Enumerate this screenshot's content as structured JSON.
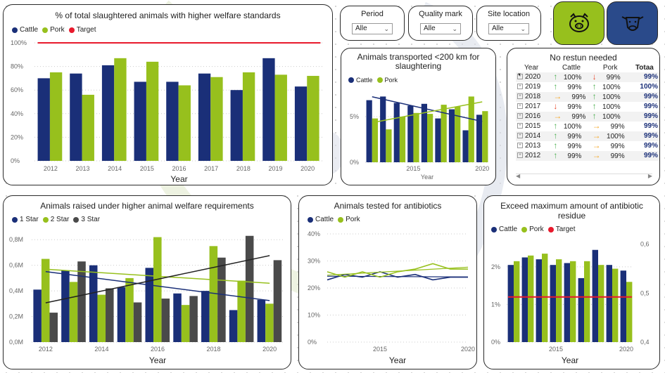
{
  "colors": {
    "cattle": "#1a2f78",
    "pork": "#97c01d",
    "target": "#e8192c",
    "star3": "#4a4a4a",
    "pig_btn": "#97c01d",
    "cow_btn": "#2a4a8a",
    "arrow_up": "#4caf50",
    "arrow_down": "#e8492c",
    "arrow_right": "#f5a623"
  },
  "slicers": [
    {
      "label": "Period",
      "value": "Alle"
    },
    {
      "label": "Quality mark",
      "value": "Alle"
    },
    {
      "label": "Site location",
      "value": "Alle"
    }
  ],
  "buttons": {
    "pig": "pig-icon",
    "cow": "cow-icon"
  },
  "watermark": "vion",
  "welfare": {
    "title": "% of total slaughtered animals with higher welfare standards",
    "legend": [
      "Cattle",
      "Pork",
      "Target"
    ],
    "xlabel": "Year",
    "yticks": [
      "100%",
      "80%",
      "60%",
      "40%",
      "20%",
      "0%"
    ]
  },
  "transport": {
    "title": "Animals transported <200 km for slaughtering",
    "legend": [
      "Cattle",
      "Pork"
    ],
    "xlabel": "Year",
    "yticks": [
      "5%",
      "0%"
    ],
    "xticks": [
      "2015",
      "2020"
    ]
  },
  "matrix": {
    "title": "No restun needed",
    "headers": [
      "Year",
      "Cattle",
      "Pork",
      "Totaa"
    ],
    "rows": [
      {
        "year": "2020",
        "cattle": "100%",
        "ca": "up",
        "pork": "99%",
        "pa": "down",
        "total": "99%"
      },
      {
        "year": "2019",
        "cattle": "99%",
        "ca": "up",
        "pork": "100%",
        "pa": "up",
        "total": "100%"
      },
      {
        "year": "2018",
        "cattle": "99%",
        "ca": "right",
        "pork": "100%",
        "pa": "up",
        "total": "99%"
      },
      {
        "year": "2017",
        "cattle": "99%",
        "ca": "down",
        "pork": "100%",
        "pa": "up",
        "total": "99%"
      },
      {
        "year": "2016",
        "cattle": "99%",
        "ca": "right",
        "pork": "100%",
        "pa": "up",
        "total": "99%"
      },
      {
        "year": "2015",
        "cattle": "100%",
        "ca": "up",
        "pork": "99%",
        "pa": "right",
        "total": "99%"
      },
      {
        "year": "2014",
        "cattle": "99%",
        "ca": "up",
        "pork": "100%",
        "pa": "right",
        "total": "99%"
      },
      {
        "year": "2013",
        "cattle": "99%",
        "ca": "up",
        "pork": "99%",
        "pa": "right",
        "total": "99%"
      },
      {
        "year": "2012",
        "cattle": "99%",
        "ca": "up",
        "pork": "99%",
        "pa": "right",
        "total": "99%"
      }
    ]
  },
  "raised": {
    "title": "Animals raised under higher animal welfare requirements",
    "legend": [
      "1 Star",
      "2 Star",
      "3 Star"
    ],
    "xlabel": "Year",
    "yticks": [
      "0,8M",
      "0,6M",
      "0,4M",
      "0,2M",
      "0,0M"
    ]
  },
  "antibiotics": {
    "title": "Animals tested for antibiotics",
    "legend": [
      "Cattle",
      "Pork"
    ],
    "xlabel": "Year",
    "yticks": [
      "40%",
      "30%",
      "20%",
      "10%",
      "0%"
    ],
    "xticks": [
      "2015",
      "2020"
    ]
  },
  "residue": {
    "title": "Exceed maximum amount of antibiotic residue",
    "legend": [
      "Cattle",
      "Pork",
      "Target"
    ],
    "xlabel": "Year",
    "yticks": [
      "2%",
      "1%",
      "0%"
    ],
    "y2ticks": [
      "0,6",
      "0,5",
      "0,4"
    ],
    "xticks": [
      "2015",
      "2020"
    ]
  },
  "chart_data": [
    {
      "type": "bar",
      "title": "% of total slaughtered animals with higher welfare standards",
      "categories": [
        "2012",
        "2013",
        "2014",
        "2015",
        "2016",
        "2017",
        "2018",
        "2019",
        "2020"
      ],
      "series": [
        {
          "name": "Cattle",
          "values": [
            70,
            74,
            81,
            67,
            67,
            74,
            60,
            87,
            63
          ]
        },
        {
          "name": "Pork",
          "values": [
            75,
            56,
            87,
            84,
            64,
            71,
            75,
            73,
            72
          ]
        },
        {
          "name": "Target",
          "values": [
            100,
            100,
            100,
            100,
            100,
            100,
            100,
            100,
            100
          ]
        }
      ],
      "xlabel": "Year",
      "ylabel": "",
      "ylim": [
        0,
        100
      ]
    },
    {
      "type": "bar",
      "title": "Animals transported <200 km for slaughtering",
      "categories": [
        "2012",
        "2013",
        "2014",
        "2015",
        "2016",
        "2017",
        "2018",
        "2019",
        "2020"
      ],
      "series": [
        {
          "name": "Cattle",
          "values": [
            6.8,
            7.2,
            6.5,
            6.2,
            6.4,
            4.8,
            5.8,
            3.5,
            5.2
          ]
        },
        {
          "name": "Pork",
          "values": [
            4.8,
            3.6,
            5.0,
            5.4,
            5.3,
            6.3,
            6.1,
            7.2,
            5.6
          ]
        }
      ],
      "xlabel": "Year",
      "ylim": [
        0,
        8
      ]
    },
    {
      "type": "bar",
      "title": "Animals raised under higher animal welfare requirements",
      "categories": [
        "2012",
        "2013",
        "2014",
        "2015",
        "2016",
        "2017",
        "2018",
        "2019",
        "2020"
      ],
      "series": [
        {
          "name": "1 Star",
          "values": [
            0.41,
            0.56,
            0.6,
            0.43,
            0.58,
            0.38,
            0.4,
            0.25,
            0.33
          ]
        },
        {
          "name": "2 Star",
          "values": [
            0.65,
            0.47,
            0.37,
            0.5,
            0.82,
            0.29,
            0.75,
            0.48,
            0.3
          ]
        },
        {
          "name": "3 Star",
          "values": [
            0.23,
            0.63,
            0.42,
            0.31,
            0.34,
            0.36,
            0.66,
            0.83,
            0.64
          ]
        }
      ],
      "xlabel": "Year",
      "ylim": [
        0,
        0.9
      ]
    },
    {
      "type": "line",
      "title": "Animals tested for antibiotics",
      "x": [
        2012,
        2013,
        2014,
        2015,
        2016,
        2017,
        2018,
        2019,
        2020
      ],
      "series": [
        {
          "name": "Cattle",
          "values": [
            23,
            25,
            24,
            26,
            24,
            25,
            23,
            24,
            24
          ]
        },
        {
          "name": "Pork",
          "values": [
            26,
            24,
            26,
            24,
            26,
            27,
            29,
            27,
            27
          ]
        }
      ],
      "xlabel": "Year",
      "ylim": [
        0,
        40
      ]
    },
    {
      "type": "bar",
      "title": "Exceed maximum amount of antibiotic residue",
      "categories": [
        "2012",
        "2013",
        "2014",
        "2015",
        "2016",
        "2017",
        "2018",
        "2019",
        "2020"
      ],
      "series": [
        {
          "name": "Cattle",
          "values": [
            2.05,
            2.25,
            2.2,
            2.05,
            2.1,
            1.7,
            2.45,
            2.05,
            1.9
          ]
        },
        {
          "name": "Pork",
          "values": [
            2.15,
            2.3,
            2.35,
            2.2,
            2.15,
            2.15,
            2.05,
            1.95,
            1.6
          ]
        },
        {
          "name": "Target",
          "values": [
            1.2,
            1.2,
            1.2,
            1.2,
            1.2,
            1.2,
            1.2,
            1.2,
            1.2
          ]
        }
      ],
      "xlabel": "Year",
      "ylim": [
        0,
        2.8
      ]
    }
  ]
}
